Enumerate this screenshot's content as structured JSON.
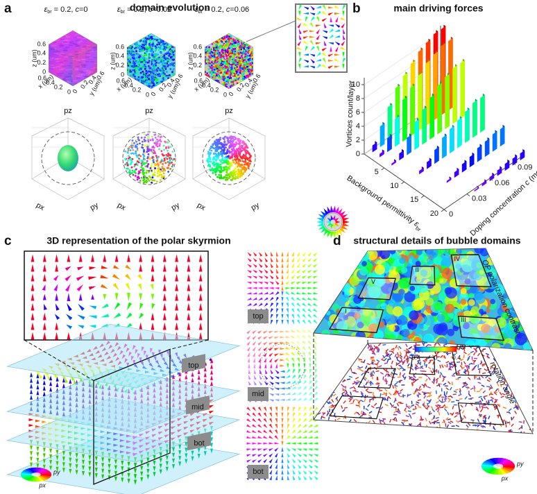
{
  "panel_a": {
    "label": "a",
    "title": "domain evolution",
    "conditions": [
      {
        "symbol": "ε",
        "subscript": "br",
        "value": " = 0.2, ",
        "variable": "c",
        "c_value": "=0"
      },
      {
        "symbol": "ε",
        "subscript": "br",
        "value": " = 0.2, ",
        "variable": "c",
        "c_value": "=0.02"
      },
      {
        "symbol": "ε",
        "subscript": "br",
        "value": " = 0.2, ",
        "variable": "c",
        "c_value": "=0.06"
      }
    ],
    "axis_labels": {
      "z": "z (um)",
      "x": "x (um)",
      "y": "y (um)"
    },
    "ticks": [
      0,
      0.2,
      0.4,
      0.6
    ],
    "sphere_axes": {
      "z": "pz",
      "x": "px",
      "y": "py"
    }
  },
  "panel_b": {
    "label": "b",
    "title": "main driving forces",
    "chart_data": {
      "type": "bar3d",
      "z_label": "Vortices count/layer",
      "x_label": {
        "text": "Background permittivity ",
        "symbol": "ε",
        "subscript": "br"
      },
      "y_label": {
        "text": "Doping concentration ",
        "variable": "c",
        "unit": " (mol)"
      },
      "x": [
        0.2,
        2,
        5,
        10,
        15,
        20
      ],
      "y": [
        0,
        0.01,
        0.02,
        0.03,
        0.04,
        0.05,
        0.06,
        0.07,
        0.08,
        0.09,
        0.1
      ],
      "values": [
        [
          0,
          1,
          3,
          5,
          7,
          8,
          9,
          10,
          10.5,
          11,
          11
        ],
        [
          0,
          0.5,
          2,
          4,
          6,
          7,
          8,
          9,
          9.5,
          10,
          10
        ],
        [
          0,
          0.3,
          1,
          2.5,
          4,
          5,
          6,
          7,
          7.5,
          8,
          8
        ],
        [
          0,
          0,
          0.5,
          1,
          2,
          3,
          3.5,
          4,
          4.5,
          5,
          5
        ],
        [
          0,
          0,
          0,
          0.3,
          0.8,
          1.2,
          1.5,
          2,
          2.2,
          2.5,
          2.5
        ],
        [
          0,
          0,
          0,
          0,
          0.2,
          0.4,
          0.6,
          0.8,
          1,
          1,
          1
        ]
      ],
      "zlim": [
        0,
        11
      ],
      "zticks": [
        0,
        2,
        4,
        6,
        8,
        10
      ],
      "xlim": [
        0,
        20
      ],
      "xticks": [
        5,
        10,
        15,
        20
      ],
      "ylim": [
        0,
        0.1
      ],
      "yticks": [
        0,
        0.03,
        0.06,
        0.09
      ]
    }
  },
  "panel_c": {
    "label": "c",
    "title": "3D representation of the polar skyrmion",
    "layers": [
      "top",
      "mid",
      "bot"
    ],
    "wheel": {
      "x": "px",
      "y": "py"
    }
  },
  "panel_d": {
    "label": "d",
    "title": "structural details of bubble domains",
    "top_plane": "OP polarization contrast",
    "bottom_plane": "rotation angle",
    "colorbar": {
      "label": "pz",
      "ticks": [
        -0.4,
        0,
        0.4
      ]
    },
    "regions": [
      "I",
      "II",
      "III",
      "IV",
      "V"
    ],
    "wheel": {
      "x": "px",
      "y": "py"
    }
  }
}
